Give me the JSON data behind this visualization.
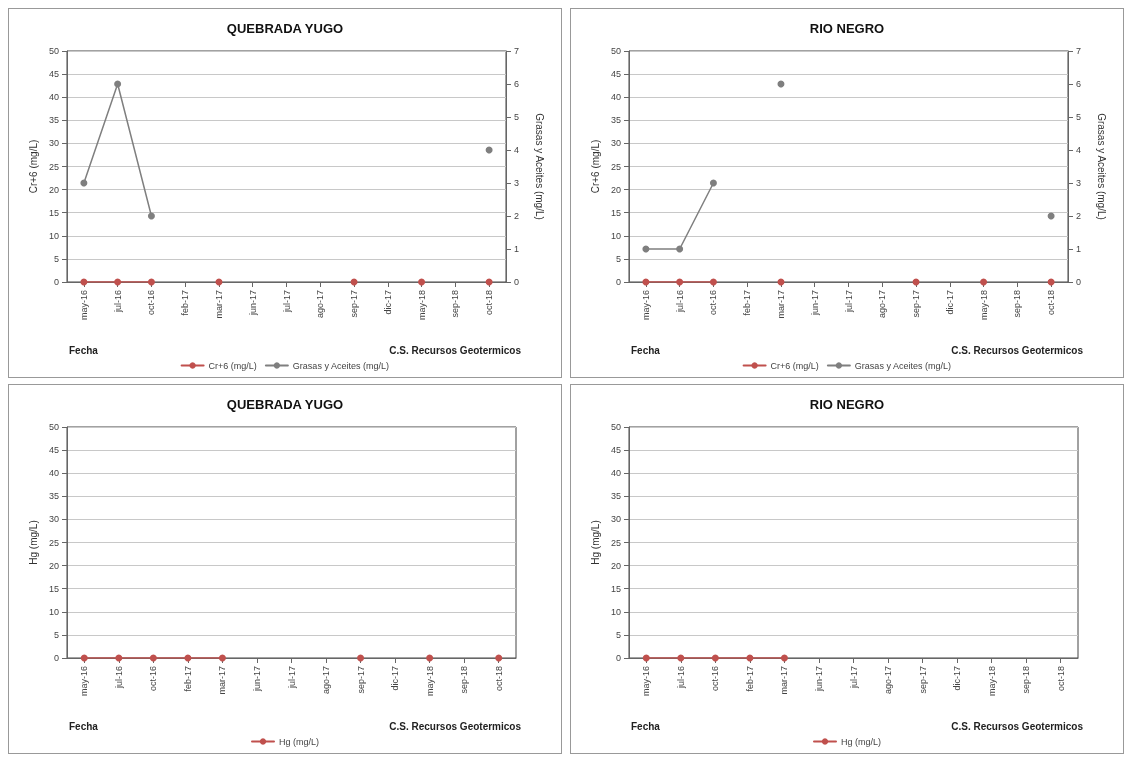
{
  "chart_data": [
    {
      "type": "line",
      "title": "QUEBRADA YUGO",
      "xlabel": "Fecha",
      "ylabel": "Cr+6 (mg/L)",
      "y2label": "Grasas y Aceites (mg/L)",
      "annotations": [
        "C.S. Recursos Geotermicos"
      ],
      "categories": [
        "may-16",
        "jul-16",
        "oct-16",
        "feb-17",
        "mar-17",
        "jun-17",
        "jul-17",
        "ago-17",
        "sep-17",
        "dic-17",
        "may-18",
        "sep-18",
        "oct-18"
      ],
      "series": [
        {
          "name": "Cr+6 (mg/L)",
          "color": "#c0504d",
          "values": [
            0,
            0,
            0,
            null,
            0,
            null,
            null,
            null,
            0,
            null,
            0,
            null,
            0
          ]
        },
        {
          "name": "Grasas y Aceites (mg/L)",
          "color": "#7f7f7f",
          "axis": "y2",
          "values": [
            3,
            6,
            2,
            null,
            null,
            null,
            null,
            null,
            null,
            null,
            null,
            null,
            4
          ]
        }
      ],
      "ylim": [
        0,
        50
      ],
      "yticks": [
        0,
        5,
        10,
        15,
        20,
        25,
        30,
        35,
        40,
        45,
        50
      ],
      "y2lim": [
        0,
        7
      ],
      "y2ticks": [
        0,
        1,
        2,
        3,
        4,
        5,
        6,
        7
      ],
      "grid": "y",
      "legend": "bottom",
      "marker": "circle",
      "line_style": "solid"
    },
    {
      "type": "line",
      "title": "RIO NEGRO",
      "xlabel": "Fecha",
      "ylabel": "Cr+6 (mg/L)",
      "y2label": "Grasas y Aceites (mg/L)",
      "annotations": [
        "C.S. Recursos Geotermicos"
      ],
      "categories": [
        "may-16",
        "jul-16",
        "oct-16",
        "feb-17",
        "mar-17",
        "jun-17",
        "jul-17",
        "ago-17",
        "sep-17",
        "dic-17",
        "may-18",
        "sep-18",
        "oct-18"
      ],
      "series": [
        {
          "name": "Cr+6 (mg/L)",
          "color": "#c0504d",
          "values": [
            0,
            0,
            0,
            null,
            0,
            null,
            null,
            null,
            0,
            null,
            0,
            null,
            0
          ]
        },
        {
          "name": "Grasas y Aceites (mg/L)",
          "color": "#7f7f7f",
          "axis": "y2",
          "values": [
            1,
            1,
            3,
            null,
            6,
            null,
            null,
            null,
            null,
            null,
            null,
            null,
            2
          ]
        }
      ],
      "ylim": [
        0,
        50
      ],
      "yticks": [
        0,
        5,
        10,
        15,
        20,
        25,
        30,
        35,
        40,
        45,
        50
      ],
      "y2lim": [
        0,
        7
      ],
      "y2ticks": [
        0,
        1,
        2,
        3,
        4,
        5,
        6,
        7
      ],
      "grid": "y",
      "legend": "bottom",
      "marker": "circle",
      "line_style": "solid"
    },
    {
      "type": "line",
      "title": "QUEBRADA YUGO",
      "xlabel": "Fecha",
      "ylabel": "Hg (mg/L)",
      "annotations": [
        "C.S. Recursos Geotermicos"
      ],
      "categories": [
        "may-16",
        "jul-16",
        "oct-16",
        "feb-17",
        "mar-17",
        "jun-17",
        "jul-17",
        "ago-17",
        "sep-17",
        "dic-17",
        "may-18",
        "sep-18",
        "oct-18"
      ],
      "series": [
        {
          "name": "Hg (mg/L)",
          "color": "#c0504d",
          "values": [
            0,
            0,
            0,
            0,
            0,
            null,
            null,
            null,
            0,
            null,
            0,
            null,
            0
          ]
        }
      ],
      "ylim": [
        0,
        50
      ],
      "yticks": [
        0,
        5,
        10,
        15,
        20,
        25,
        30,
        35,
        40,
        45,
        50
      ],
      "grid": "y",
      "legend": "bottom",
      "marker": "circle",
      "line_style": "solid"
    },
    {
      "type": "line",
      "title": "RIO NEGRO",
      "xlabel": "Fecha",
      "ylabel": "Hg (mg/L)",
      "annotations": [
        "C.S. Recursos Geotermicos"
      ],
      "categories": [
        "may-16",
        "jul-16",
        "oct-16",
        "feb-17",
        "mar-17",
        "jun-17",
        "jul-17",
        "ago-17",
        "sep-17",
        "dic-17",
        "may-18",
        "sep-18",
        "oct-18"
      ],
      "series": [
        {
          "name": "Hg (mg/L)",
          "color": "#c0504d",
          "values": [
            0,
            0,
            0,
            0,
            0,
            null,
            null,
            null,
            null,
            null,
            null,
            null,
            null
          ]
        }
      ],
      "ylim": [
        0,
        50
      ],
      "yticks": [
        0,
        5,
        10,
        15,
        20,
        25,
        30,
        35,
        40,
        45,
        50
      ],
      "grid": "y",
      "legend": "bottom",
      "marker": "circle",
      "line_style": "solid"
    }
  ]
}
